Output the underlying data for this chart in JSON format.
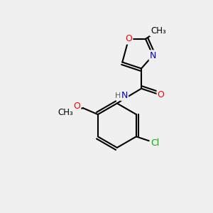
{
  "background_color": "#f0f0f0",
  "bond_color": "#000000",
  "atom_colors": {
    "O": "#ff0000",
    "N": "#0000cd",
    "Cl": "#00aa00",
    "C": "#000000",
    "H": "#555555"
  },
  "figsize": [
    3.0,
    3.0
  ],
  "dpi": 100
}
